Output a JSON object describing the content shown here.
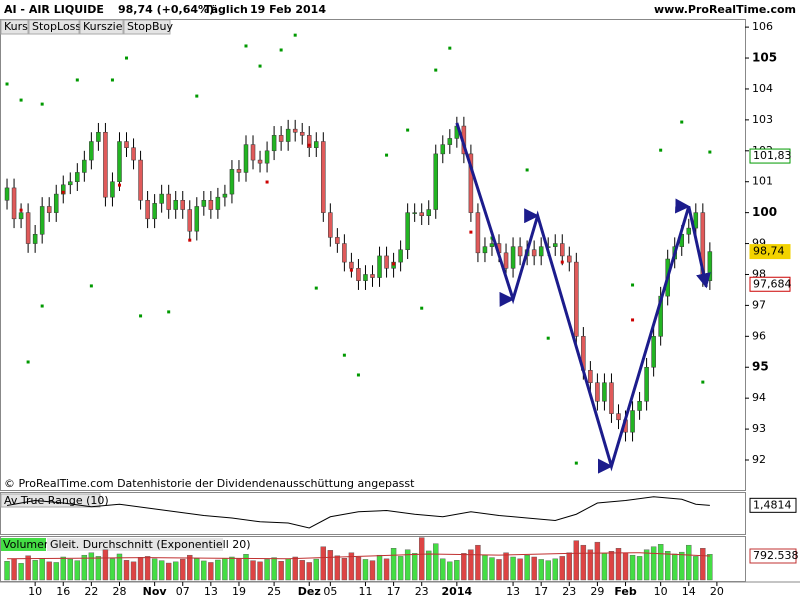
{
  "header": {
    "symbol": "AI - AIR LIQUIDE",
    "quote": "98,74 (+0,64%)",
    "period": "Täglich",
    "date": "19 Feb 2014",
    "site": "www.ProRealTime.com"
  },
  "chart_data": [
    {
      "type": "candlestick",
      "kurs_button": "Kurs",
      "stopbuy_button": "StopBuy",
      "footnote": "© ProRealTime.com Datenhistorie der Dividendenausschüttung angepasst",
      "up_color": "#22b422",
      "down_color": "#e05a5a",
      "open": [
        100.4,
        100.8,
        99.8,
        100.0,
        99.0,
        99.3,
        100.2,
        100.0,
        100.6,
        100.9,
        101.0,
        101.3,
        101.7,
        102.3,
        102.6,
        100.5,
        101.0,
        102.3,
        102.1,
        101.7,
        100.4,
        99.8,
        100.3,
        100.6,
        100.1,
        100.4,
        100.1,
        99.4,
        100.2,
        100.4,
        100.1,
        100.5,
        100.6,
        101.4,
        101.3,
        102.2,
        101.7,
        101.6,
        102.0,
        102.5,
        102.3,
        102.7,
        102.6,
        102.5,
        102.1,
        102.3,
        100.0,
        99.2,
        99.0,
        98.4,
        98.2,
        97.8,
        98.0,
        97.9,
        98.6,
        98.2,
        98.4,
        98.8,
        100.0,
        100.0,
        99.9,
        100.1,
        101.9,
        102.2,
        102.4,
        102.8,
        101.9,
        100.0,
        98.7,
        98.9,
        99.0,
        98.7,
        98.2,
        98.9,
        98.6,
        98.8,
        98.6,
        98.9,
        98.9,
        99.0,
        98.6,
        98.4,
        96.0,
        94.9,
        94.5,
        93.9,
        94.5,
        93.5,
        93.3,
        92.9,
        93.6,
        93.9,
        95.0,
        96.0,
        97.3,
        98.5,
        98.9,
        99.3,
        99.5,
        100.0,
        97.8
      ],
      "high": [
        101.1,
        101.1,
        100.3,
        100.3,
        99.6,
        100.5,
        100.5,
        100.9,
        101.2,
        101.3,
        101.6,
        102.0,
        102.6,
        102.9,
        102.9,
        101.3,
        102.6,
        102.6,
        102.4,
        102.0,
        100.7,
        100.6,
        100.9,
        100.9,
        100.7,
        100.7,
        100.4,
        100.5,
        100.7,
        100.7,
        100.8,
        100.9,
        101.7,
        101.7,
        102.5,
        102.5,
        102.0,
        102.3,
        102.8,
        102.8,
        103.0,
        103.0,
        102.9,
        102.8,
        102.6,
        102.6,
        100.3,
        99.5,
        99.3,
        98.7,
        98.5,
        98.3,
        98.3,
        98.9,
        98.9,
        98.7,
        99.1,
        100.3,
        100.3,
        100.3,
        100.4,
        102.2,
        102.5,
        102.7,
        103.1,
        103.1,
        102.2,
        100.3,
        99.2,
        99.3,
        99.3,
        99.0,
        99.2,
        99.2,
        99.1,
        99.1,
        99.2,
        99.2,
        99.3,
        99.3,
        98.9,
        98.7,
        96.3,
        95.2,
        94.8,
        94.8,
        94.8,
        93.8,
        93.6,
        93.9,
        94.2,
        95.3,
        96.3,
        97.6,
        98.8,
        99.2,
        99.6,
        99.8,
        100.3,
        100.3,
        99.04
      ],
      "low": [
        100.1,
        99.5,
        99.5,
        98.7,
        98.7,
        99.0,
        99.7,
        99.7,
        100.3,
        100.6,
        100.7,
        101.0,
        101.4,
        102.0,
        100.2,
        100.2,
        100.7,
        101.8,
        101.4,
        100.1,
        99.5,
        99.5,
        100.0,
        99.8,
        99.8,
        99.8,
        99.1,
        99.1,
        99.9,
        99.8,
        99.8,
        100.2,
        100.3,
        101.0,
        101.0,
        101.4,
        101.3,
        101.3,
        101.7,
        102.0,
        102.0,
        102.3,
        102.2,
        101.8,
        101.8,
        99.7,
        98.9,
        98.7,
        98.1,
        97.9,
        97.5,
        97.5,
        97.6,
        97.6,
        97.9,
        97.9,
        98.1,
        98.5,
        99.7,
        99.6,
        99.6,
        99.8,
        101.6,
        101.9,
        102.1,
        101.6,
        99.7,
        98.4,
        98.4,
        98.6,
        98.4,
        97.9,
        97.9,
        98.3,
        98.3,
        98.3,
        98.3,
        98.6,
        98.6,
        98.3,
        98.1,
        95.7,
        94.6,
        94.2,
        93.6,
        93.6,
        93.2,
        93.0,
        92.6,
        92.6,
        93.3,
        93.6,
        94.7,
        95.7,
        97.0,
        98.2,
        98.6,
        99.0,
        99.2,
        97.6,
        97.5
      ],
      "close": [
        100.8,
        99.8,
        100.0,
        99.0,
        99.3,
        100.2,
        100.0,
        100.6,
        100.9,
        101.0,
        101.3,
        101.7,
        102.3,
        102.6,
        100.5,
        101.0,
        102.3,
        102.1,
        101.7,
        100.4,
        99.8,
        100.3,
        100.6,
        100.1,
        100.4,
        100.1,
        99.4,
        100.2,
        100.4,
        100.1,
        100.5,
        100.6,
        101.4,
        101.3,
        102.2,
        101.7,
        101.6,
        102.0,
        102.5,
        102.3,
        102.7,
        102.6,
        102.5,
        102.1,
        102.3,
        100.0,
        99.2,
        99.0,
        98.4,
        98.2,
        97.8,
        98.0,
        97.9,
        98.6,
        98.2,
        98.4,
        98.8,
        100.0,
        100.0,
        99.9,
        100.1,
        101.9,
        102.2,
        102.4,
        102.8,
        101.9,
        100.0,
        98.7,
        98.9,
        99.0,
        98.7,
        98.2,
        98.9,
        98.6,
        98.8,
        98.6,
        98.9,
        98.9,
        99.0,
        98.6,
        98.4,
        96.0,
        94.9,
        94.5,
        93.9,
        94.5,
        93.5,
        93.3,
        92.9,
        93.6,
        93.9,
        95.0,
        96.0,
        97.3,
        98.5,
        98.9,
        99.3,
        99.5,
        100.0,
        97.9,
        98.74
      ],
      "series": [
        {
          "name": "StopLoss",
          "color": "#cc0000",
          "x": [
            2,
            8,
            16,
            26,
            37,
            43,
            49,
            55,
            66,
            79,
            89
          ],
          "values": [
            100.08,
            100.66,
            100.89,
            99.11,
            100.99,
            102.18,
            98.14,
            98.34,
            99.37,
            98.4,
            96.53
          ]
        },
        {
          "name": "Kursziel",
          "color": "#009900",
          "x": [
            0,
            2,
            5,
            10,
            15,
            17,
            3,
            5,
            12,
            19,
            23,
            27,
            34,
            36,
            39,
            41,
            44,
            48,
            50,
            54,
            57,
            61,
            63,
            59,
            69,
            74,
            77,
            81,
            89,
            93,
            96,
            100,
            99
          ],
          "values": [
            104.16,
            103.64,
            103.51,
            104.29,
            104.29,
            105.0,
            95.17,
            96.98,
            97.63,
            96.66,
            96.79,
            103.77,
            105.39,
            104.74,
            105.26,
            105.74,
            97.56,
            95.39,
            94.75,
            101.86,
            102.67,
            104.61,
            105.32,
            96.91,
            99.18,
            101.38,
            95.94,
            91.9,
            97.66,
            102.02,
            102.93,
            101.96,
            94.52
          ]
        }
      ],
      "trendline": {
        "color": "#1c1c8c",
        "x": [
          64,
          72,
          75.5,
          86,
          97,
          99.5
        ],
        "values": [
          102.9,
          97.2,
          99.9,
          91.8,
          100.2,
          97.6
        ]
      },
      "price_labels": [
        {
          "value": 98.74,
          "label": "98,74",
          "color": "#f2d200"
        },
        {
          "value": 97.684,
          "label": "97,684",
          "color": "#cc0000"
        },
        {
          "value": 101.83,
          "label": "101,83",
          "color": "#009900"
        }
      ],
      "xlim": [
        -1,
        105
      ],
      "ylim": [
        91.03,
        106.23
      ],
      "yticks": [
        92,
        93,
        94,
        95,
        96,
        97,
        98,
        99,
        100,
        101,
        102,
        103,
        104,
        105,
        106
      ],
      "xticks": [
        {
          "value": 4,
          "label": "10"
        },
        {
          "value": 8,
          "label": "16"
        },
        {
          "value": 12,
          "label": "22"
        },
        {
          "value": 16,
          "label": "28"
        },
        {
          "value": 21,
          "label": "Nov"
        },
        {
          "value": 25,
          "label": "07"
        },
        {
          "value": 29,
          "label": "13"
        },
        {
          "value": 33,
          "label": "19"
        },
        {
          "value": 38,
          "label": "25"
        },
        {
          "value": 43,
          "label": "Dez"
        },
        {
          "value": 46,
          "label": "05"
        },
        {
          "value": 51,
          "label": "11"
        },
        {
          "value": 55,
          "label": "17"
        },
        {
          "value": 59,
          "label": "23"
        },
        {
          "value": 64,
          "label": "2014"
        },
        {
          "value": 72,
          "label": "13"
        },
        {
          "value": 76,
          "label": "17"
        },
        {
          "value": 80,
          "label": "23"
        },
        {
          "value": 84,
          "label": "29"
        },
        {
          "value": 88,
          "label": "Feb"
        },
        {
          "value": 93,
          "label": "10"
        },
        {
          "value": 97,
          "label": "14"
        },
        {
          "value": 101,
          "label": "20"
        }
      ]
    },
    {
      "type": "line",
      "title": "Av True Range (10)",
      "color": "#000000",
      "x": [
        0,
        4,
        8,
        12,
        16,
        20,
        24,
        28,
        32,
        36,
        40,
        43,
        46,
        50,
        54,
        58,
        62,
        66,
        70,
        74,
        78,
        81,
        84,
        88,
        92,
        96,
        98,
        100
      ],
      "values": [
        1.48,
        1.52,
        1.5,
        1.47,
        1.49,
        1.46,
        1.43,
        1.4,
        1.38,
        1.35,
        1.34,
        1.3,
        1.39,
        1.43,
        1.44,
        1.41,
        1.39,
        1.43,
        1.4,
        1.38,
        1.36,
        1.41,
        1.5,
        1.52,
        1.55,
        1.53,
        1.49,
        1.4814
      ],
      "last_value_label": "1,4814",
      "ylim": [
        1.26,
        1.58
      ]
    },
    {
      "type": "bar",
      "up_color": "#44dd44",
      "down_color": "#dd4444",
      "ylim": [
        0,
        1420000
      ],
      "series": [
        {
          "name": "Volumen",
          "color": "#44dd44",
          "values": [
            620000,
            700000,
            550000,
            800000,
            650000,
            720000,
            600000,
            580000,
            760000,
            690000,
            640000,
            820000,
            900000,
            780000,
            1000000,
            700000,
            860000,
            650000,
            600000,
            750000,
            780000,
            700000,
            640000,
            560000,
            600000,
            690000,
            820000,
            710000,
            630000,
            580000,
            660000,
            720000,
            760000,
            700000,
            850000,
            640000,
            600000,
            680000,
            740000,
            620000,
            700000,
            760000,
            650000,
            580000,
            690000,
            1100000,
            980000,
            800000,
            720000,
            900000,
            760000,
            680000,
            640000,
            820000,
            700000,
            1050000,
            780000,
            1000000,
            880000,
            1400000,
            960000,
            1200000,
            700000,
            600000,
            650000,
            880000,
            1000000,
            1150000,
            820000,
            740000,
            680000,
            900000,
            760000,
            700000,
            820000,
            760000,
            680000,
            640000,
            700000,
            780000,
            900000,
            1300000,
            1150000,
            1000000,
            1250000,
            880000,
            950000,
            1050000,
            900000,
            820000,
            780000,
            1000000,
            1100000,
            1180000,
            950000,
            860000,
            920000,
            1150000,
            780000,
            1050000,
            850000
          ]
        },
        {
          "name": "Gleit. Durchschnitt (Exponentiell 20)",
          "type": "line",
          "color": "#c03030",
          "x": [
            0,
            10,
            20,
            30,
            40,
            50,
            60,
            70,
            80,
            90,
            100
          ],
          "values": [
            700000,
            720000,
            740000,
            720000,
            700000,
            780000,
            860000,
            820000,
            880000,
            900000,
            792538
          ],
          "last_value_label": "792.538"
        }
      ]
    }
  ]
}
